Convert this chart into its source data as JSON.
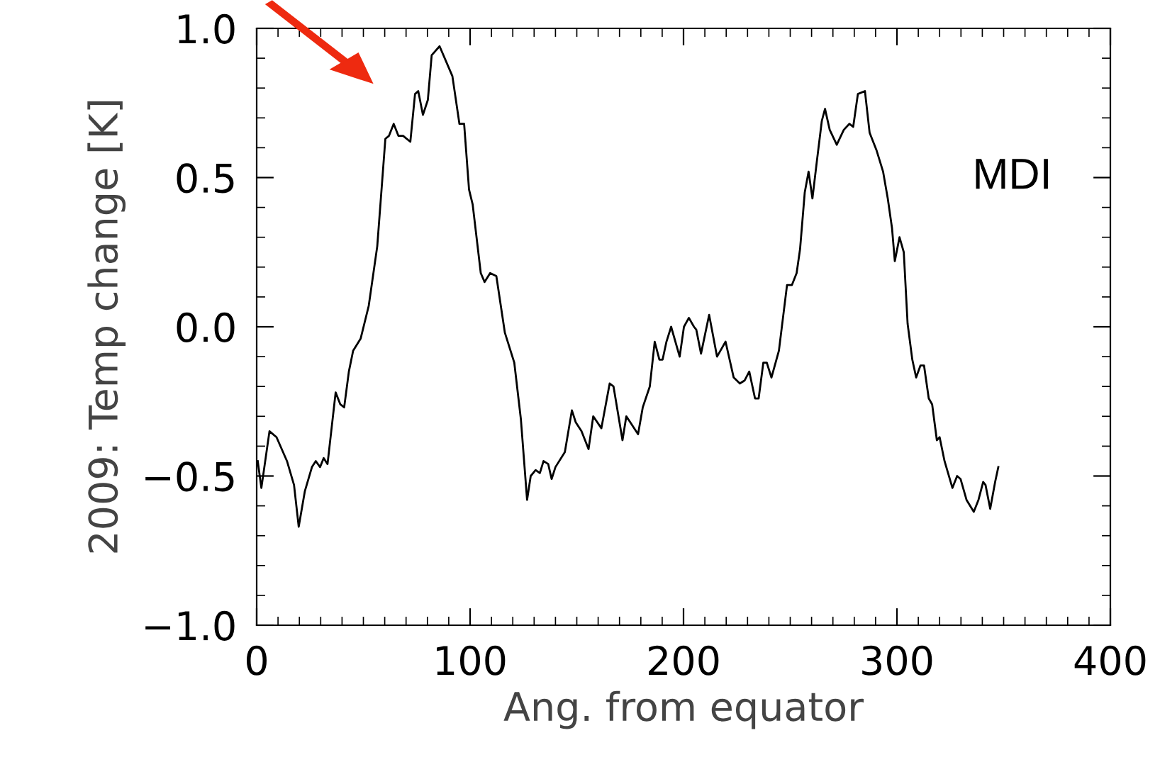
{
  "chart_data": {
    "type": "line",
    "xlabel": "Ang. from equator",
    "ylabel": "2009: Temp change [K]",
    "annotations": [
      "MDI"
    ],
    "x": [
      0.5,
      2.2,
      6,
      9.3,
      14.2,
      17.5,
      19.7,
      22.6,
      25.9,
      27.7,
      29.7,
      31.4,
      33.2,
      37,
      39.2,
      41,
      43.2,
      45.2,
      48.7,
      52.5,
      56.5,
      60.3,
      62,
      64.2,
      66.4,
      68.6,
      72,
      74.2,
      75.7,
      77.9,
      80.2,
      82,
      85.7,
      91.7,
      95,
      97.2,
      99.5,
      101.2,
      105,
      106.8,
      109.4,
      112.3,
      116.3,
      120.7,
      123.8,
      126.7,
      128.4,
      130.7,
      132.7,
      134.4,
      136.6,
      138.2,
      140,
      144.4,
      147.7,
      149.5,
      152.2,
      155.5,
      157.7,
      161.5,
      165.4,
      167.2,
      171.4,
      173.2,
      178.7,
      180.9,
      184.2,
      186.5,
      188.7,
      190.2,
      192,
      194.2,
      198.2,
      200.2,
      202.5,
      204.9,
      206,
      208.2,
      212,
      215.7,
      219.7,
      223.5,
      226.4,
      228.6,
      230.8,
      233.5,
      235.2,
      237.4,
      239,
      241.2,
      244.7,
      248.5,
      250.8,
      253,
      254.6,
      256.8,
      258.6,
      260.4,
      262.4,
      264.8,
      266.3,
      268.5,
      271.8,
      275.1,
      277.7,
      279.5,
      281.7,
      285,
      287.2,
      290.5,
      293.5,
      295.7,
      297.7,
      299,
      301.2,
      303.2,
      305,
      307.2,
      309,
      311,
      312.7,
      314.9,
      316.5,
      318.7,
      320,
      322.3,
      326,
      328.2,
      329.8,
      332.6,
      336,
      338.2,
      340.4,
      341.5,
      343.7,
      346,
      347.5
    ],
    "series": [
      {
        "color": "#000000",
        "values": [
          -0.45,
          -0.54,
          -0.35,
          -0.37,
          -0.45,
          -0.53,
          -0.67,
          -0.55,
          -0.47,
          -0.45,
          -0.47,
          -0.44,
          -0.46,
          -0.22,
          -0.26,
          -0.27,
          -0.15,
          -0.08,
          -0.04,
          0.07,
          0.27,
          0.63,
          0.64,
          0.68,
          0.64,
          0.64,
          0.62,
          0.78,
          0.79,
          0.71,
          0.76,
          0.91,
          0.94,
          0.84,
          0.68,
          0.68,
          0.46,
          0.41,
          0.18,
          0.15,
          0.18,
          0.17,
          -0.02,
          -0.12,
          -0.31,
          -0.58,
          -0.5,
          -0.48,
          -0.49,
          -0.45,
          -0.46,
          -0.51,
          -0.47,
          -0.42,
          -0.28,
          -0.32,
          -0.35,
          -0.41,
          -0.3,
          -0.34,
          -0.19,
          -0.2,
          -0.38,
          -0.3,
          -0.36,
          -0.27,
          -0.2,
          -0.05,
          -0.11,
          -0.11,
          -0.05,
          0.0,
          -0.1,
          0.0,
          0.03,
          0.0,
          -0.01,
          -0.09,
          0.04,
          -0.1,
          -0.05,
          -0.17,
          -0.19,
          -0.18,
          -0.15,
          -0.24,
          -0.24,
          -0.12,
          -0.12,
          -0.17,
          -0.08,
          0.14,
          0.14,
          0.18,
          0.26,
          0.45,
          0.52,
          0.43,
          0.55,
          0.69,
          0.73,
          0.66,
          0.61,
          0.66,
          0.68,
          0.67,
          0.78,
          0.79,
          0.65,
          0.59,
          0.52,
          0.43,
          0.33,
          0.22,
          0.3,
          0.25,
          0.01,
          -0.11,
          -0.17,
          -0.13,
          -0.13,
          -0.24,
          -0.26,
          -0.38,
          -0.37,
          -0.45,
          -0.54,
          -0.5,
          -0.51,
          -0.58,
          -0.62,
          -0.58,
          -0.52,
          -0.53,
          -0.61,
          -0.52,
          -0.47
        ]
      }
    ],
    "xlim": [
      0,
      400
    ],
    "xticks": [
      0,
      100,
      200,
      300,
      400
    ],
    "ylim": [
      -1.0,
      1.0
    ],
    "yticks": [
      {
        "value": -1.0,
        "label": "−1.0"
      },
      {
        "value": -0.5,
        "label": "−0.5"
      },
      {
        "value": 0.0,
        "label": "0.0"
      },
      {
        "value": 0.5,
        "label": "0.5"
      },
      {
        "value": 1.0,
        "label": "1.0"
      }
    ],
    "grid": false,
    "legend": false,
    "marker": "none",
    "line_style": "solid"
  }
}
